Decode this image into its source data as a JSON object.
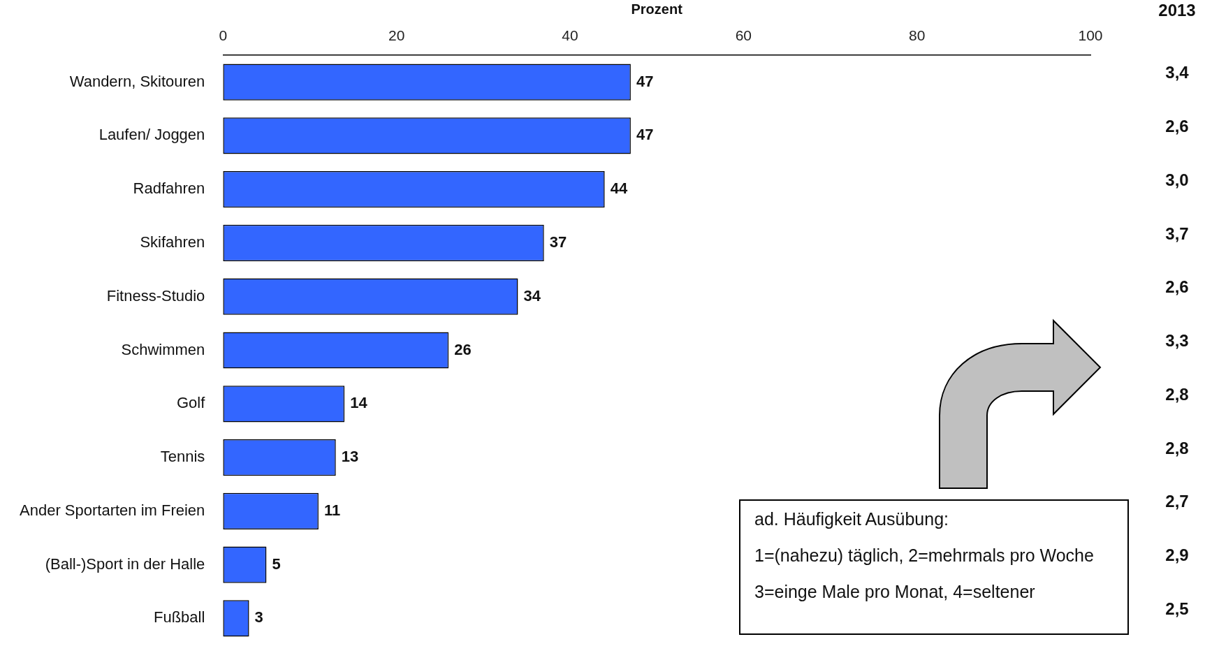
{
  "chart_data": {
    "type": "bar",
    "orientation": "horizontal",
    "xlabel": "Prozent",
    "categories": [
      "Wandern, Skitouren",
      "Laufen/ Joggen",
      "Radfahren",
      "Skifahren",
      "Fitness-Studio",
      "Schwimmen",
      "Golf",
      "Tennis",
      "Ander Sportarten im Freien",
      "(Ball-)Sport in der Halle",
      "Fußball"
    ],
    "values": [
      47,
      47,
      44,
      37,
      34,
      26,
      14,
      13,
      11,
      5,
      3
    ],
    "color": "#3366ff",
    "xlim": [
      0,
      100
    ],
    "xticks": [
      0,
      20,
      40,
      60,
      80,
      100
    ],
    "grid": false,
    "legend": false,
    "data_labels": true,
    "annotations": [
      "2013",
      "3,4",
      "2,6",
      "3,0",
      "3,7",
      "2,6",
      "3,3",
      "2,8",
      "2,8",
      "2,7",
      "2,9",
      "2,5",
      "ad. Häufigkeit Ausübung:",
      "1=(nahezu) täglich, 2=mehrmals pro Woche",
      "3=einge Male pro Monat, 4=seltener"
    ]
  }
}
